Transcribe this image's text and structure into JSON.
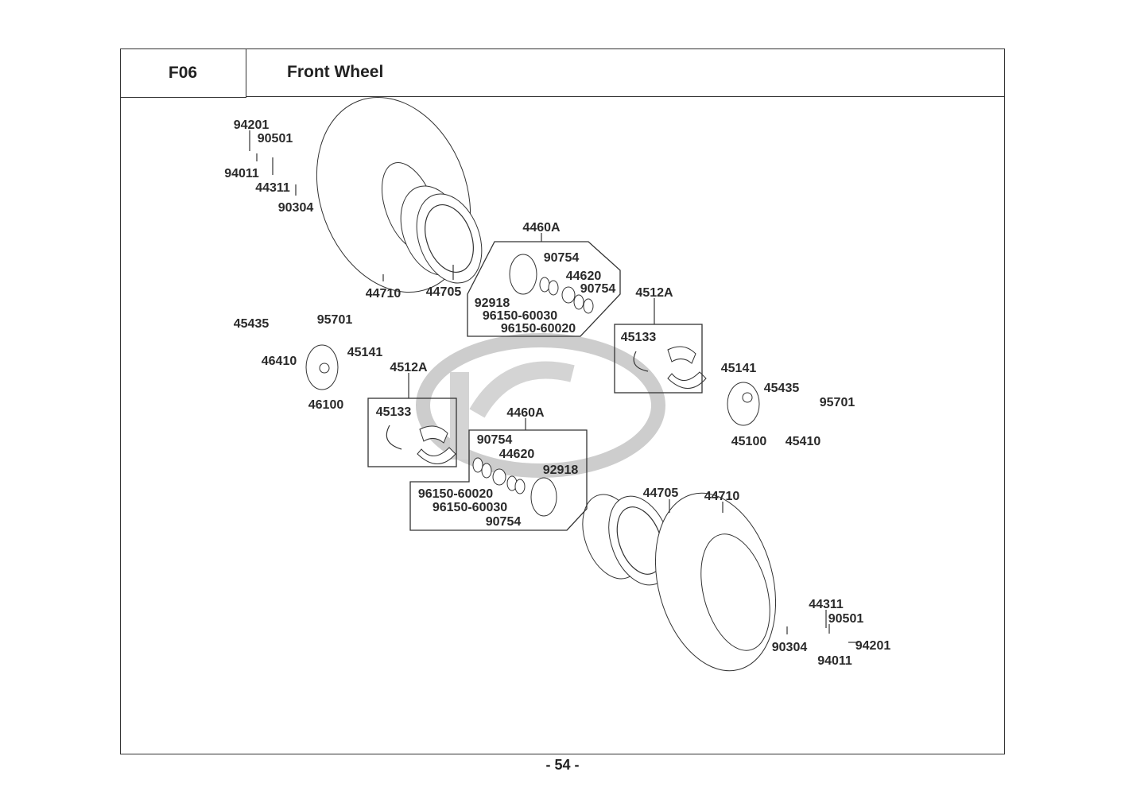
{
  "header": {
    "code": "F06",
    "title": "Front Wheel"
  },
  "page_number": "- 54 -",
  "watermark": "KYMCO",
  "labels": [
    "94201",
    "90501",
    "94011",
    "44311",
    "90304",
    "44710",
    "44705",
    "4460A",
    "90754",
    "44620",
    "90754",
    "92918",
    "96150-60030",
    "96150-60020",
    "4512A",
    "45133",
    "45435",
    "95701",
    "45141",
    "46410",
    "46100",
    "4512A",
    "45133",
    "4460A",
    "90754",
    "44620",
    "92918",
    "96150-60020",
    "96150-60030",
    "90754",
    "45141",
    "45435",
    "95701",
    "45100",
    "45410",
    "44705",
    "44710",
    "44311",
    "90501",
    "90304",
    "94201",
    "94011"
  ]
}
